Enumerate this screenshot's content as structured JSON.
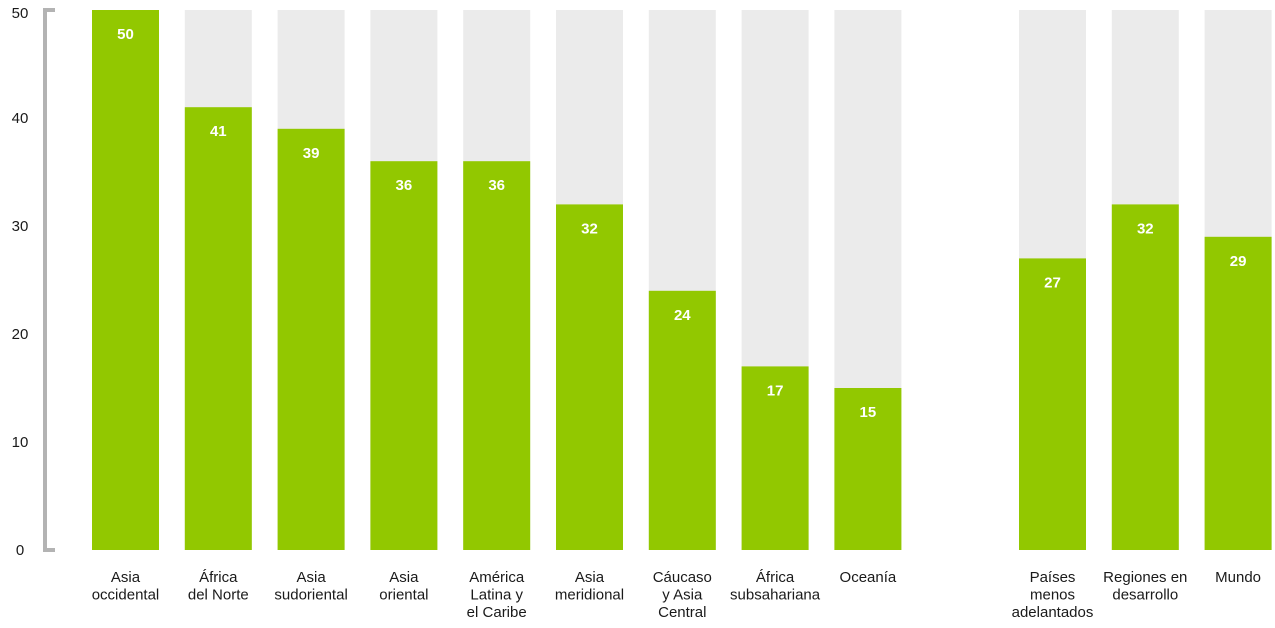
{
  "colors": {
    "bar": "#92c800",
    "background_bar": "#ebebeb",
    "axis": "#b3b3b3",
    "label_text": "#1a1a1a",
    "value_text": "#ffffff"
  },
  "chart_data": {
    "type": "bar",
    "title": "",
    "xlabel": "",
    "ylabel": "",
    "ylim": [
      0,
      50
    ],
    "yticks": [
      0,
      10,
      20,
      30,
      40,
      50
    ],
    "grid": false,
    "legend": "none",
    "groups": [
      {
        "categories": [
          [
            "Asia",
            "occidental"
          ],
          [
            "África",
            "del Norte"
          ],
          [
            "Asia",
            "sudoriental"
          ],
          [
            "Asia",
            "oriental"
          ],
          [
            "América",
            "Latina y",
            "el Caribe"
          ],
          [
            "Asia",
            "meridional"
          ],
          [
            "Cáucaso",
            "y Asia",
            "Central"
          ],
          [
            "África",
            "subsahariana"
          ],
          [
            "Oceanía"
          ]
        ],
        "values": [
          50,
          41,
          39,
          36,
          36,
          32,
          24,
          17,
          15
        ],
        "value_labels": [
          "50",
          "41",
          "39",
          "36",
          "36",
          "32",
          "24",
          "17",
          "15"
        ]
      },
      {
        "categories": [
          [
            "Países",
            "menos",
            "adelantados"
          ],
          [
            "Regiones en",
            "desarrollo"
          ],
          [
            "Mundo"
          ]
        ],
        "values": [
          27,
          32,
          29
        ],
        "value_labels": [
          "27",
          "32",
          "29"
        ]
      }
    ]
  }
}
